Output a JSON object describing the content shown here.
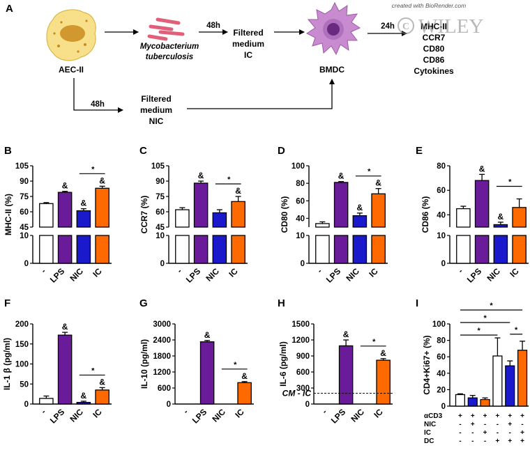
{
  "watermark": {
    "credit": "created with BioRender.com",
    "publisher": "WILEY"
  },
  "schematic": {
    "panel_letter": "A",
    "aec": "AEC-II",
    "mtb_line1": "Mycobacterium",
    "mtb_line2": "tuberculosis",
    "time_top": "48h",
    "time_bottom": "48h",
    "time_right": "24h",
    "ic_box": [
      "Filtered",
      "medium",
      "IC"
    ],
    "nic_box": [
      "Filtered",
      "medium",
      "NIC"
    ],
    "bmdc": "BMDC",
    "readouts": [
      "MHC-II",
      "CCR7",
      "CD80",
      "CD86",
      "Cytokines"
    ]
  },
  "colors": {
    "ctrl": "#ffffff",
    "LPS": "#6a1b9a",
    "NIC": "#1a1acc",
    "IC": "#ff6a00"
  },
  "chart_data": [
    {
      "panel": "B",
      "type": "bar",
      "ylabel": "MHC-II (%)",
      "categories": [
        "-",
        "LPS",
        "NIC",
        "IC"
      ],
      "values": [
        68,
        79,
        61,
        83
      ],
      "errors": [
        1,
        1,
        2,
        2
      ],
      "yticks_upper": [
        45,
        60,
        75,
        90,
        105
      ],
      "yticks_lower": [
        0,
        10
      ],
      "annotations": [
        "",
        "&",
        "&",
        "&"
      ],
      "significance": [
        {
          "from": 2,
          "to": 3,
          "label": "*"
        }
      ]
    },
    {
      "panel": "C",
      "type": "bar",
      "ylabel": "CCR7 (%)",
      "categories": [
        "-",
        "LPS",
        "NIC",
        "IC"
      ],
      "values": [
        62,
        88,
        59,
        70
      ],
      "errors": [
        2,
        2,
        3,
        5
      ],
      "yticks_upper": [
        45,
        60,
        75,
        90,
        105
      ],
      "yticks_lower": [
        0,
        10
      ],
      "annotations": [
        "",
        "&",
        "",
        "&"
      ],
      "significance": [
        {
          "from": 2,
          "to": 3,
          "label": "*"
        }
      ]
    },
    {
      "panel": "D",
      "type": "bar",
      "ylabel": "CD80 (%)",
      "categories": [
        "-",
        "LPS",
        "NIC",
        "IC"
      ],
      "values": [
        34,
        81,
        43,
        68
      ],
      "errors": [
        2,
        1,
        3,
        6
      ],
      "yticks_upper": [
        40,
        60,
        80,
        100
      ],
      "yticks_lower": [
        0,
        10
      ],
      "annotations": [
        "",
        "&",
        "&",
        "&"
      ],
      "significance": [
        {
          "from": 2,
          "to": 3,
          "label": "*"
        }
      ]
    },
    {
      "panel": "E",
      "type": "bar",
      "ylabel": "CD86 (%)",
      "categories": [
        "-",
        "LPS",
        "NIC",
        "IC"
      ],
      "values": [
        45,
        68,
        32,
        46
      ],
      "errors": [
        2,
        5,
        2,
        7
      ],
      "yticks_upper": [
        40,
        60,
        80
      ],
      "yticks_lower": [
        0,
        10
      ],
      "annotations": [
        "",
        "&",
        "&",
        ""
      ],
      "significance": [
        {
          "from": 2,
          "to": 3,
          "label": "*"
        }
      ]
    },
    {
      "panel": "F",
      "type": "bar",
      "ylabel": "IL-1 β (pg/ml)",
      "categories": [
        "-",
        "LPS",
        "NIC",
        "IC"
      ],
      "values": [
        14,
        172,
        4,
        35
      ],
      "errors": [
        6,
        7,
        3,
        6
      ],
      "ylim": [
        0,
        200
      ],
      "yticks": [
        0,
        50,
        100,
        150,
        200
      ],
      "annotations": [
        "",
        "&",
        "&",
        "&"
      ],
      "significance": [
        {
          "from": 2,
          "to": 3,
          "label": "*"
        }
      ]
    },
    {
      "panel": "G",
      "type": "bar",
      "ylabel": "IL-10 (pg/ml)",
      "categories": [
        "-",
        "LPS",
        "NIC",
        "IC"
      ],
      "values": [
        0,
        2330,
        0,
        800
      ],
      "errors": [
        0,
        50,
        0,
        40
      ],
      "ylim": [
        0,
        3000
      ],
      "yticks": [
        0,
        600,
        1200,
        1800,
        2400,
        3000
      ],
      "annotations": [
        "",
        "&",
        "",
        "&"
      ],
      "significance": [
        {
          "from": 2,
          "to": 3,
          "label": "*"
        }
      ]
    },
    {
      "panel": "H",
      "type": "bar",
      "ylabel": "IL-6 (pg/ml)",
      "categories": [
        "-",
        "LPS",
        "NIC",
        "IC"
      ],
      "values": [
        0,
        1090,
        0,
        820
      ],
      "errors": [
        0,
        110,
        0,
        30
      ],
      "ylim": [
        0,
        1500
      ],
      "yticks": [
        0,
        300,
        600,
        900,
        1200,
        1500
      ],
      "annotations": [
        "",
        "&",
        "",
        "&"
      ],
      "significance": [
        {
          "from": 2,
          "to": 3,
          "label": "*"
        }
      ],
      "reference_line": {
        "value": 200,
        "label": "CM - IC"
      }
    },
    {
      "panel": "I",
      "type": "bar",
      "ylabel": "CD4+Ki67+ (%)",
      "values": [
        14,
        10,
        8,
        61,
        49,
        68
      ],
      "errors": [
        1,
        3,
        2,
        22,
        6,
        11
      ],
      "bar_colors": [
        "#ffffff",
        "#1a1acc",
        "#ff6a00",
        "#ffffff",
        "#1a1acc",
        "#ff6a00"
      ],
      "ylim": [
        0,
        100
      ],
      "yticks": [
        0,
        20,
        40,
        60,
        80,
        100
      ],
      "condition_rows": [
        {
          "name": "αCD3",
          "signs": [
            "+",
            "+",
            "+",
            "+",
            "+",
            "+"
          ]
        },
        {
          "name": "NIC",
          "signs": [
            "-",
            "+",
            "-",
            "-",
            "+",
            "-"
          ]
        },
        {
          "name": "IC",
          "signs": [
            "-",
            "-",
            "+",
            "-",
            "-",
            "+"
          ]
        },
        {
          "name": "DC",
          "signs": [
            "-",
            "-",
            "-",
            "+",
            "+",
            "+"
          ]
        }
      ],
      "significance": [
        {
          "from": 0,
          "to": 5,
          "label": "*"
        },
        {
          "from": 0,
          "to": 4,
          "label": "*"
        },
        {
          "from": 0,
          "to": 3,
          "label": "*"
        },
        {
          "from": 4,
          "to": 5,
          "label": "*"
        }
      ]
    }
  ]
}
